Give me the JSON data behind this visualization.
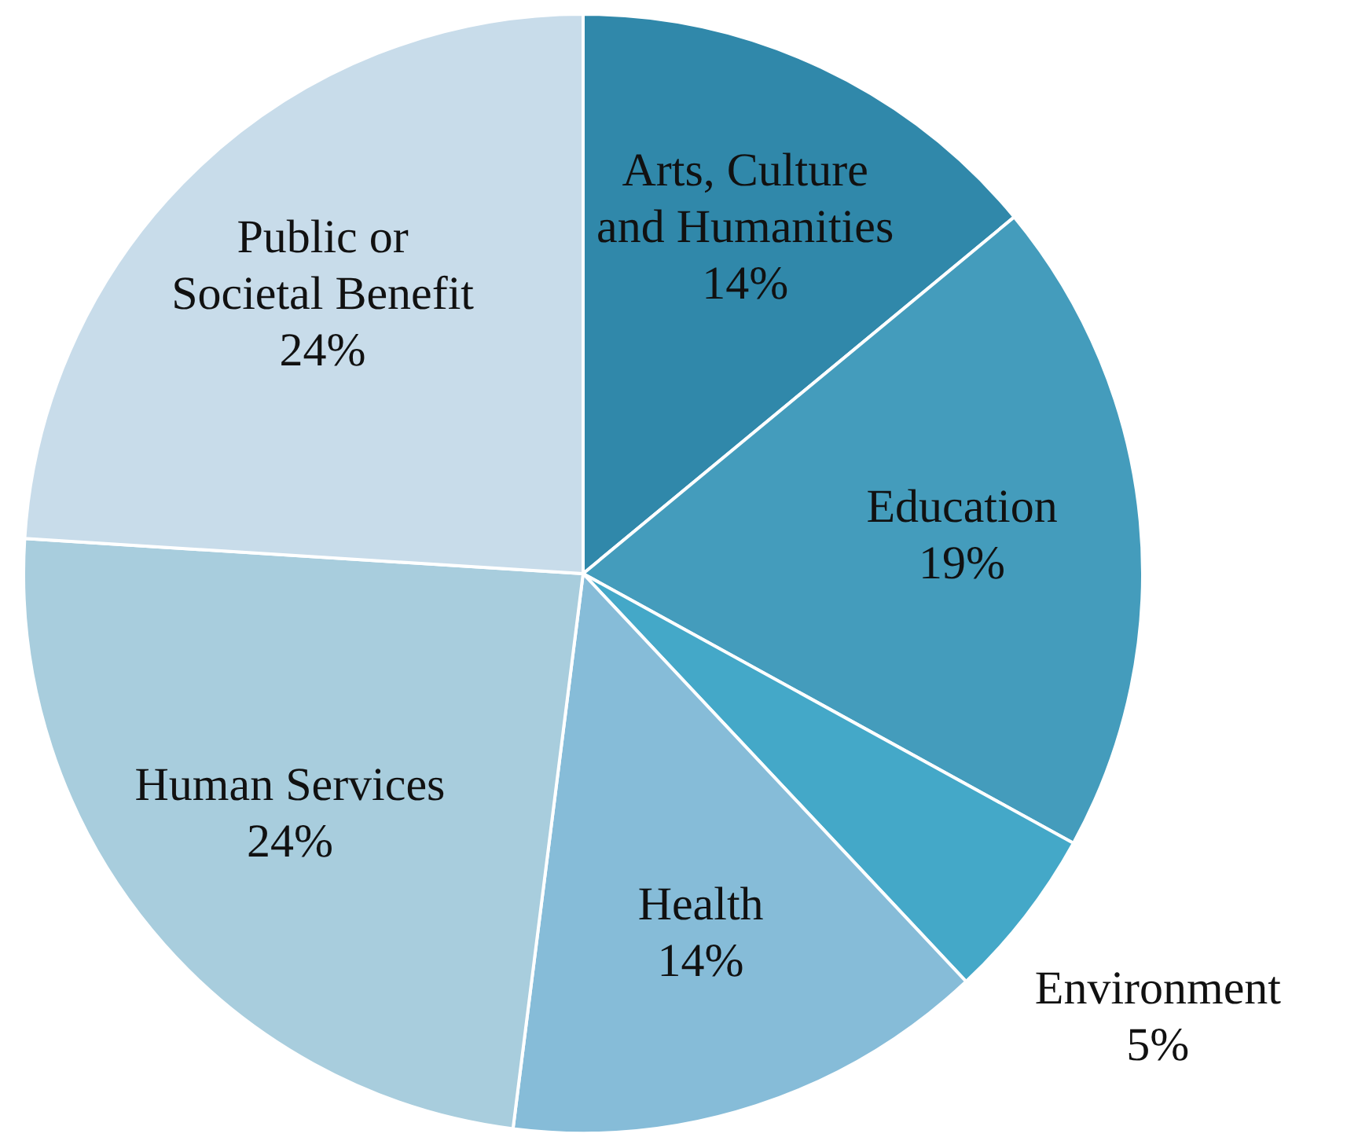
{
  "chart_data": {
    "type": "pie",
    "categories": [
      "Arts, Culture and Humanities",
      "Education",
      "Environment",
      "Health",
      "Human Services",
      "Public or Societal Benefit"
    ],
    "values": [
      14,
      19,
      5,
      14,
      24,
      24
    ],
    "value_labels": [
      "14%",
      "19%",
      "5%",
      "14%",
      "24%",
      "24%"
    ],
    "colors": [
      "#3088aa",
      "#449cbc",
      "#44a8c8",
      "#86bcd8",
      "#a8cddd",
      "#c8dcea"
    ],
    "legend": false
  }
}
